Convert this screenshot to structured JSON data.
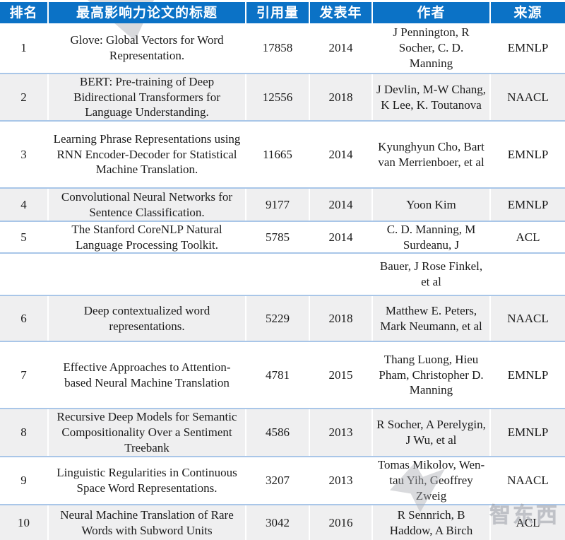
{
  "colors": {
    "header_bg": "#0b72c6",
    "header_text": "#ffffff",
    "row_shade": "#efeff0",
    "row_separator": "#a9c6e8",
    "body_text": "#1b1b1b"
  },
  "watermark": {
    "logo_text": "智东西"
  },
  "table": {
    "columns": [
      "排名",
      "最高影响力论文的标题",
      "引用量",
      "发表年",
      "作者",
      "来源"
    ],
    "rows": [
      {
        "rank": "1",
        "title": "Glove: Global Vectors for Word Representation.",
        "citations": "17858",
        "year": "2014",
        "authors": "J Pennington, R Socher, C. D. Manning",
        "source": "EMNLP"
      },
      {
        "rank": "2",
        "title": "BERT: Pre-training of Deep Bidirectional Transformers for Language Understanding.",
        "citations": "12556",
        "year": "2018",
        "authors": "J Devlin, M-W Chang, K Lee, K. Toutanova",
        "source": "NAACL"
      },
      {
        "rank": "3",
        "title": "Learning Phrase Representations using RNN Encoder-Decoder for Statistical Machine Translation.",
        "citations": "11665",
        "year": "2014",
        "authors": "Kyunghyun Cho, Bart van Merrienboer, et al",
        "source": "EMNLP"
      },
      {
        "rank": "4",
        "title": "Convolutional Neural Networks for Sentence Classification.",
        "citations": "9177",
        "year": "2014",
        "authors": "Yoon Kim",
        "source": "EMNLP"
      },
      {
        "rank": "5",
        "title": "The Stanford CoreNLP Natural Language Processing Toolkit.",
        "citations": "5785",
        "year": "2014",
        "authors": "C. D. Manning, M Surdeanu, J",
        "source": "ACL"
      },
      {
        "rank": "",
        "title": "",
        "citations": "",
        "year": "",
        "authors": "Bauer, J Rose Finkel, et al",
        "source": ""
      },
      {
        "rank": "6",
        "title": "Deep contextualized word representations.",
        "citations": "5229",
        "year": "2018",
        "authors": "Matthew E. Peters, Mark Neumann, et al",
        "source": "NAACL"
      },
      {
        "rank": "7",
        "title": "Effective Approaches to Attention-based Neural Machine Translation",
        "citations": "4781",
        "year": "2015",
        "authors": "Thang Luong, Hieu Pham, Christopher D. Manning",
        "source": "EMNLP"
      },
      {
        "rank": "8",
        "title": "Recursive Deep Models for Semantic Compositionality Over a Sentiment Treebank",
        "citations": "4586",
        "year": "2013",
        "authors": "R Socher, A Perelygin, J Wu, et al",
        "source": "EMNLP"
      },
      {
        "rank": "9",
        "title": "Linguistic Regularities in Continuous Space Word Representations.",
        "citations": "3207",
        "year": "2013",
        "authors": "Tomas Mikolov, Wen-tau Yih, Geoffrey Zweig",
        "source": "NAACL"
      },
      {
        "rank": "10",
        "title": "Neural Machine Translation of Rare Words with Subword Units",
        "citations": "3042",
        "year": "2016",
        "authors": "R Sennrich, B Haddow, A Birch",
        "source": "ACL"
      }
    ]
  },
  "chart_data": {
    "type": "table",
    "columns": [
      "排名",
      "最高影响力论文的标题",
      "引用量",
      "发表年",
      "作者",
      "来源"
    ],
    "rows": [
      [
        "1",
        "Glove: Global Vectors for Word Representation.",
        "17858",
        "2014",
        "J Pennington, R Socher, C. D. Manning",
        "EMNLP"
      ],
      [
        "2",
        "BERT: Pre-training of Deep Bidirectional Transformers for Language Understanding.",
        "12556",
        "2018",
        "J Devlin, M-W Chang, K Lee, K. Toutanova",
        "NAACL"
      ],
      [
        "3",
        "Learning Phrase Representations using RNN Encoder-Decoder for Statistical Machine Translation.",
        "11665",
        "2014",
        "Kyunghyun Cho, Bart van Merrienboer, et al",
        "EMNLP"
      ],
      [
        "4",
        "Convolutional Neural Networks for Sentence Classification.",
        "9177",
        "2014",
        "Yoon Kim",
        "EMNLP"
      ],
      [
        "5",
        "The Stanford CoreNLP Natural Language Processing Toolkit.",
        "5785",
        "2014",
        "C. D. Manning, M Surdeanu, J Bauer, J Rose Finkel, et al",
        "ACL"
      ],
      [
        "6",
        "Deep contextualized word representations.",
        "5229",
        "2018",
        "Matthew E. Peters, Mark Neumann, et al",
        "NAACL"
      ],
      [
        "7",
        "Effective Approaches to Attention-based Neural Machine Translation",
        "4781",
        "2015",
        "Thang Luong, Hieu Pham, Christopher D. Manning",
        "EMNLP"
      ],
      [
        "8",
        "Recursive Deep Models for Semantic Compositionality Over a Sentiment Treebank",
        "4586",
        "2013",
        "R Socher, A Perelygin, J Wu, et al",
        "EMNLP"
      ],
      [
        "9",
        "Linguistic Regularities in Continuous Space Word Representations.",
        "3207",
        "2013",
        "Tomas Mikolov, Wen-tau Yih, Geoffrey Zweig",
        "NAACL"
      ],
      [
        "10",
        "Neural Machine Translation of Rare Words with Subword Units",
        "3042",
        "2016",
        "R Sennrich, B Haddow, A Birch",
        "ACL"
      ]
    ]
  }
}
